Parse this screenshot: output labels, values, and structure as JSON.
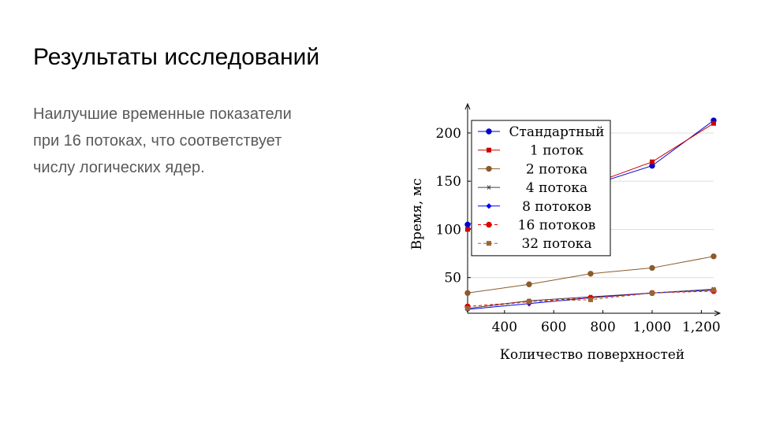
{
  "slide": {
    "title": "Результаты исследований",
    "body_lines": [
      "Наилучшие временные показатели",
      "при 16 потоках, что соответствует",
      "числу логических ядер."
    ]
  },
  "chart_data": {
    "type": "line",
    "xlabel": "Количество поверхностей",
    "ylabel": "Время, мс",
    "xlim": [
      250,
      1250
    ],
    "ylim": [
      13,
      222
    ],
    "x_ticks": [
      400,
      600,
      800,
      1000,
      1200
    ],
    "x_tick_labels": [
      "400",
      "600",
      "800",
      "1,000",
      "1,200"
    ],
    "y_ticks": [
      50,
      100,
      150,
      200
    ],
    "y_tick_labels": [
      "50",
      "100",
      "150",
      "200"
    ],
    "grid": "horizontal",
    "legend_position": "top-left",
    "series": [
      {
        "name": "Стандартный",
        "color": "#0000cc",
        "marker": "circle",
        "dash": "solid",
        "x": [
          250,
          1000,
          1250
        ],
        "y": [
          105,
          166,
          213
        ]
      },
      {
        "name": "1 поток",
        "color": "#cc0000",
        "marker": "square",
        "dash": "solid",
        "x": [
          250,
          1000,
          1250
        ],
        "y": [
          100,
          170,
          210
        ]
      },
      {
        "name": "2 потока",
        "color": "#8b5a2b",
        "marker": "circle",
        "dash": "solid",
        "x": [
          250,
          500,
          750,
          1000,
          1250
        ],
        "y": [
          34,
          43,
          54,
          60,
          72
        ]
      },
      {
        "name": "4 потока",
        "color": "#404040",
        "marker": "star",
        "dash": "solid",
        "x": [
          250,
          500,
          750,
          1000,
          1250
        ],
        "y": [
          18,
          26,
          30,
          34,
          38
        ]
      },
      {
        "name": "8 потоков",
        "color": "#0000ff",
        "marker": "diamond",
        "dash": "solid",
        "x": [
          250,
          500,
          750,
          1000,
          1250
        ],
        "y": [
          17,
          23,
          29,
          34,
          37
        ]
      },
      {
        "name": "16 потоков",
        "color": "#dd0000",
        "marker": "circle",
        "dash": "dashed",
        "x": [
          250,
          500,
          750,
          1000,
          1250
        ],
        "y": [
          20,
          25,
          29,
          34,
          36
        ]
      },
      {
        "name": "32 потока",
        "color": "#996633",
        "marker": "square",
        "dash": "dashed",
        "x": [
          250,
          500,
          750,
          1000,
          1250
        ],
        "y": [
          18,
          25,
          27,
          34,
          37
        ]
      }
    ]
  }
}
